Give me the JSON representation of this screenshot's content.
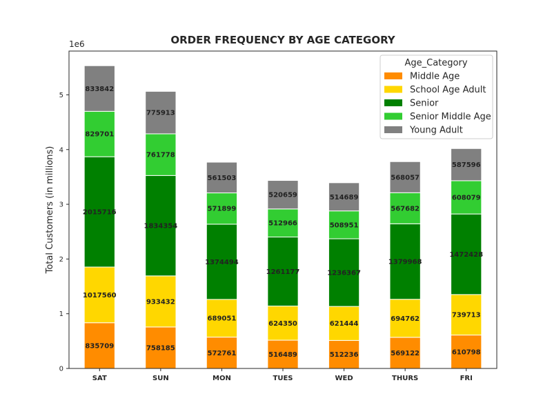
{
  "chart_data": {
    "type": "bar",
    "stacked": true,
    "title": "ORDER FREQUENCY BY AGE CATEGORY",
    "xlabel": "",
    "ylabel": "Total Customers (in millions)",
    "y_offset_label": "1e6",
    "ylim": [
      0,
      5800000
    ],
    "yticks": [
      0,
      1000000,
      2000000,
      3000000,
      4000000,
      5000000
    ],
    "ytick_labels": [
      "0",
      "1",
      "2",
      "3",
      "4",
      "5"
    ],
    "grid": false,
    "legend_title": "Age_Category",
    "legend_position": "top-right",
    "categories": [
      "SAT",
      "SUN",
      "MON",
      "TUES",
      "WED",
      "THURS",
      "FRI"
    ],
    "series": [
      {
        "name": "Middle Age",
        "color": "#ff8c00",
        "values": [
          835709,
          758185,
          572761,
          516489,
          512236,
          569122,
          610798
        ]
      },
      {
        "name": "School Age Adult",
        "color": "#ffd700",
        "values": [
          1017560,
          933432,
          689051,
          624350,
          621444,
          694762,
          739713
        ]
      },
      {
        "name": "Senior",
        "color": "#008000",
        "values": [
          2015716,
          1834354,
          1374494,
          1261177,
          1236367,
          1379968,
          1472428
        ]
      },
      {
        "name": "Senior Middle Age",
        "color": "#32cd32",
        "values": [
          829701,
          761778,
          571899,
          512966,
          508951,
          567682,
          608079
        ]
      },
      {
        "name": "Young Adult",
        "color": "#808080",
        "values": [
          833842,
          775913,
          561503,
          520659,
          514689,
          568057,
          587596
        ]
      }
    ]
  }
}
